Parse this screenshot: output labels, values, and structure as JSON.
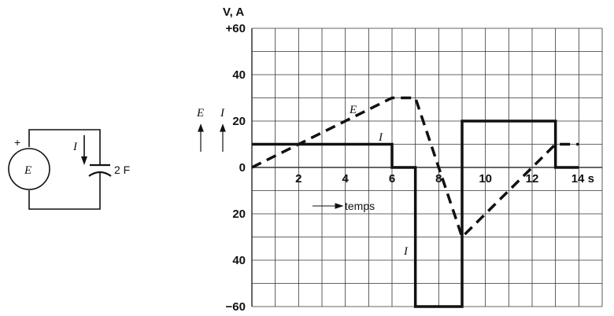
{
  "circuit": {
    "source_label": "E",
    "plus_sign": "+",
    "current_label": "I",
    "capacitor_label": "2 F"
  },
  "chart_data": {
    "type": "line",
    "ylabel": "V, A",
    "xlabel": "temps",
    "x_unit": "s",
    "xlim": [
      0,
      15
    ],
    "ylim": [
      -60,
      60
    ],
    "grid": true,
    "x_ticks": [
      2,
      4,
      6,
      8,
      10,
      12,
      14
    ],
    "x_tick_labels": [
      "2",
      "4",
      "6",
      "8",
      "10",
      "12",
      "14 s"
    ],
    "y_ticks": [
      60,
      40,
      20,
      0,
      -20,
      -40,
      -60
    ],
    "y_tick_labels": [
      "+60",
      "40",
      "20",
      "0",
      "20",
      "40",
      "−60"
    ],
    "side_labels": {
      "E": "E",
      "I": "I"
    },
    "series": [
      {
        "name": "E",
        "style": "dashed",
        "label": "E",
        "x": [
          0,
          6,
          7,
          9,
          13,
          14
        ],
        "y": [
          0,
          30,
          30,
          -30,
          10,
          10
        ]
      },
      {
        "name": "I",
        "style": "solid",
        "label": "I",
        "x": [
          0,
          6,
          6,
          7,
          7,
          9,
          9,
          13,
          13,
          14
        ],
        "y": [
          10,
          10,
          0,
          0,
          -60,
          -60,
          20,
          20,
          0,
          0
        ]
      }
    ]
  }
}
